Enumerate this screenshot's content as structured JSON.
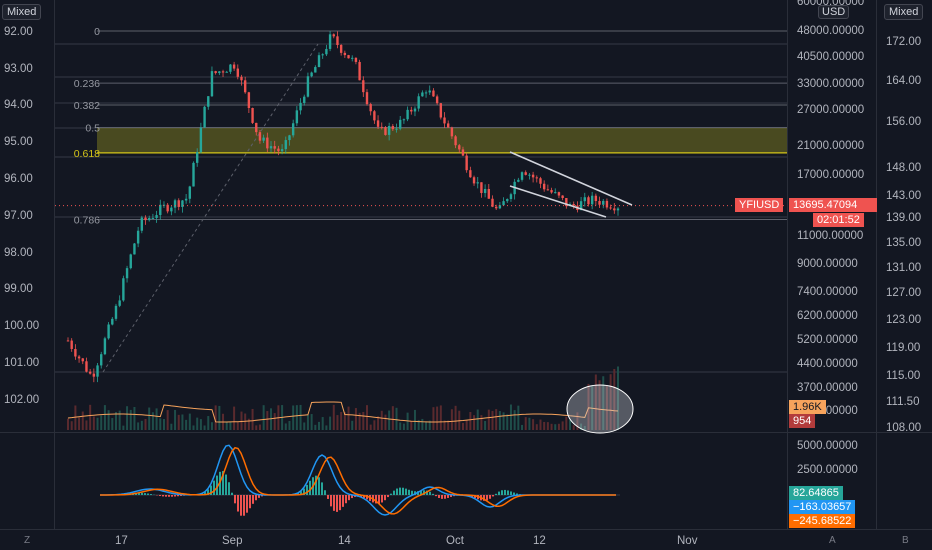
{
  "toolbar": {
    "left_mode": "Mixed",
    "right_mode": "Mixed",
    "currency": "USD"
  },
  "left_axis": [
    "92.00",
    "93.00",
    "94.00",
    "95.00",
    "96.00",
    "97.00",
    "98.00",
    "99.00",
    "100.00",
    "101.00",
    "102.00"
  ],
  "mid_axis": [
    "60000.00000",
    "48000.00000",
    "40500.00000",
    "33000.00000",
    "27000.00000",
    "21000.00000",
    "17000.00000",
    "13695.47094",
    "11000.00000",
    "9000.00000",
    "7400.00000",
    "6200.00000",
    "5200.00000",
    "4400.00000",
    "3700.00000",
    "3000.00000"
  ],
  "right_axis": [
    "172.00",
    "164.00",
    "156.00",
    "148.00",
    "143.00",
    "139.00",
    "135.00",
    "131.00",
    "127.00",
    "123.00",
    "119.00",
    "115.00",
    "111.50",
    "108.00"
  ],
  "macd_axis": [
    "5000.00000",
    "2500.00000"
  ],
  "fib_levels": [
    "0",
    "0.236",
    "0.382",
    "0.5",
    "0.618",
    "0.786"
  ],
  "tags": {
    "symbol": "YFIUSD",
    "price": "13695.47094",
    "countdown": "02:01:52",
    "vol_ma": "1.96K",
    "volume": "954",
    "macd": "82.64865",
    "macd_line": "−163.03657",
    "signal": "−245.68522"
  },
  "x_labels": [
    "17",
    "Sep",
    "14",
    "Oct",
    "12",
    "Nov"
  ],
  "corners": {
    "left": "Z",
    "mid": "A",
    "right": "B"
  },
  "colors": {
    "up": "#26a69a",
    "down": "#ef5350",
    "fib_zone": "#8c8a1e",
    "macd": "#2196f3",
    "signal": "#ff6d00"
  },
  "chart_data": {
    "type": "candlestick",
    "symbol": "YFIUSD",
    "scale": "log",
    "x": [
      "Aug 12",
      "Aug 14",
      "Aug 17",
      "Aug 20",
      "Aug 24",
      "Aug 28",
      "Aug 31",
      "Sep 1",
      "Sep 4",
      "Sep 7",
      "Sep 10",
      "Sep 14",
      "Sep 17",
      "Sep 21",
      "Sep 25",
      "Sep 28",
      "Oct 1",
      "Oct 5",
      "Oct 8",
      "Oct 10",
      "Oct 12",
      "Oct 15",
      "Oct 18",
      "Oct 21"
    ],
    "close": [
      5200,
      4000,
      6500,
      12000,
      13500,
      14500,
      35000,
      38000,
      22000,
      20000,
      33000,
      46000,
      38000,
      23000,
      25000,
      32000,
      23000,
      16500,
      13000,
      18000,
      15500,
      13600,
      14300,
      13695
    ],
    "fib_retracement": {
      "0": 48000,
      "0.236": 33000,
      "0.382": 28200,
      "0.5": 24000,
      "0.618": 20000,
      "0.786": 12400
    },
    "channel": {
      "upper": [
        [
          "Oct 9",
          19500
        ],
        [
          "Oct 23",
          13800
        ]
      ],
      "lower": [
        [
          "Oct 9",
          15500
        ],
        [
          "Oct 21",
          12000
        ]
      ]
    },
    "indicators": [
      "Volume with MA",
      "MACD"
    ]
  }
}
